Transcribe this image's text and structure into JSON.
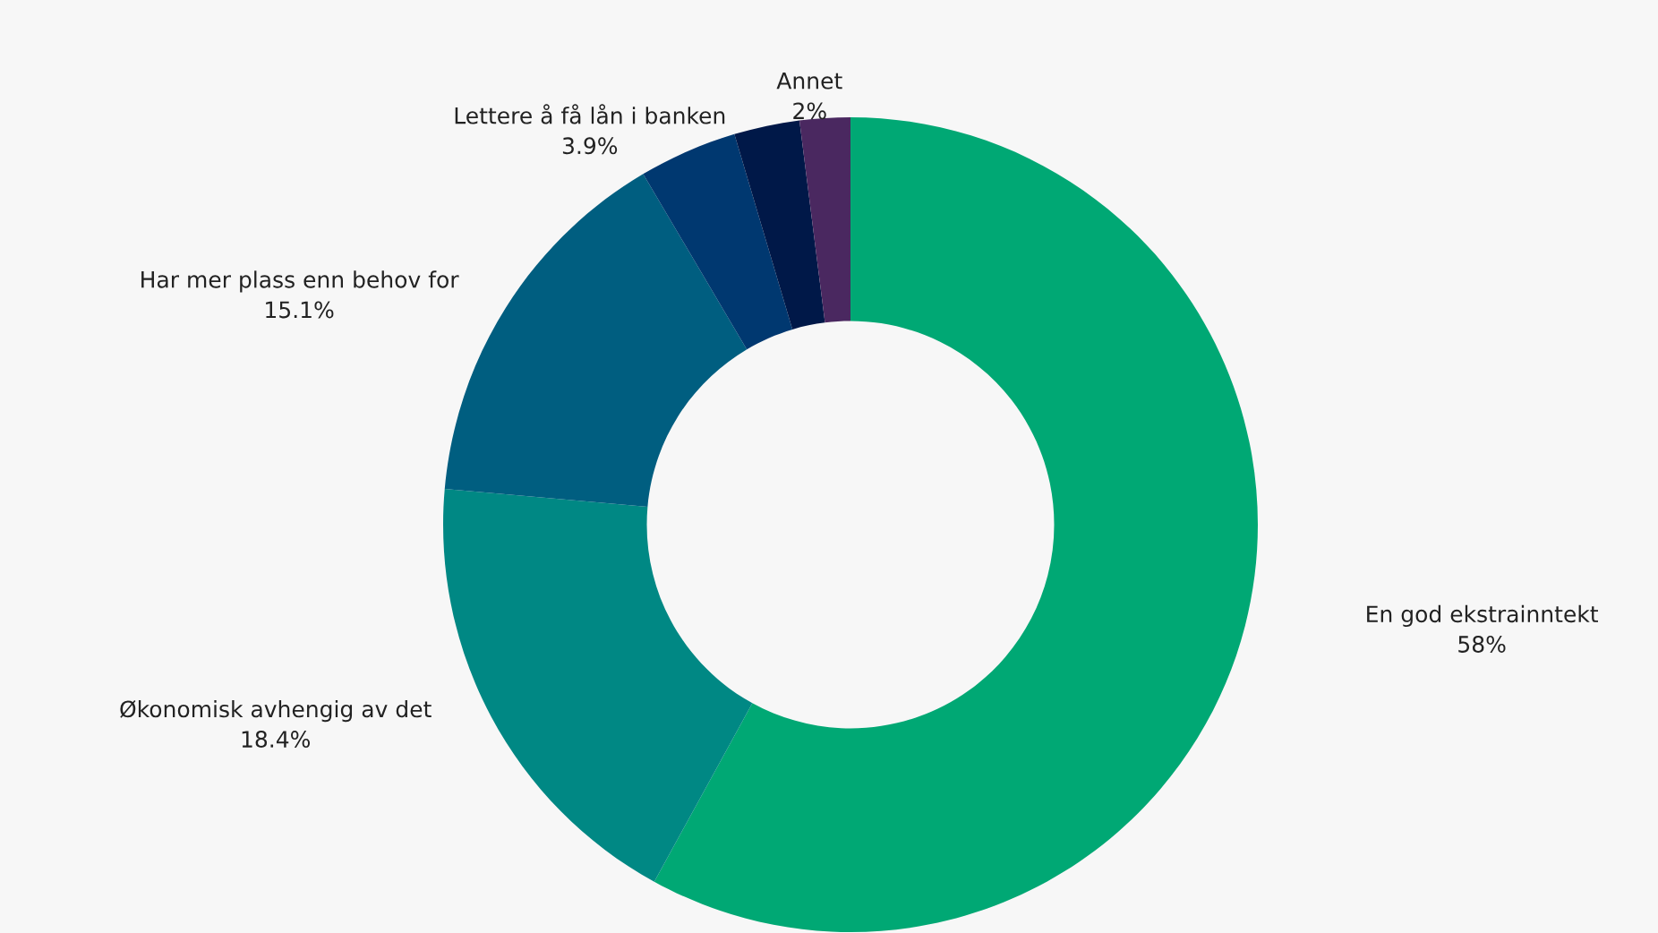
{
  "chart_data": {
    "type": "donut",
    "categories": [
      "En god ekstrainntekt",
      "Økonomisk avhengig av det",
      "Har mer plass enn behov for",
      "Lettere å få lån i banken",
      null,
      "Annet"
    ],
    "values": [
      58,
      18.4,
      15.1,
      3.9,
      2.6,
      2
    ],
    "value_labels": [
      "58%",
      "18.4%",
      "15.1%",
      "3.9%",
      null,
      "2%"
    ],
    "colors": [
      "#00a874",
      "#008884",
      "#005e80",
      "#003870",
      "#001848",
      "#4a2860"
    ],
    "legend": false
  }
}
